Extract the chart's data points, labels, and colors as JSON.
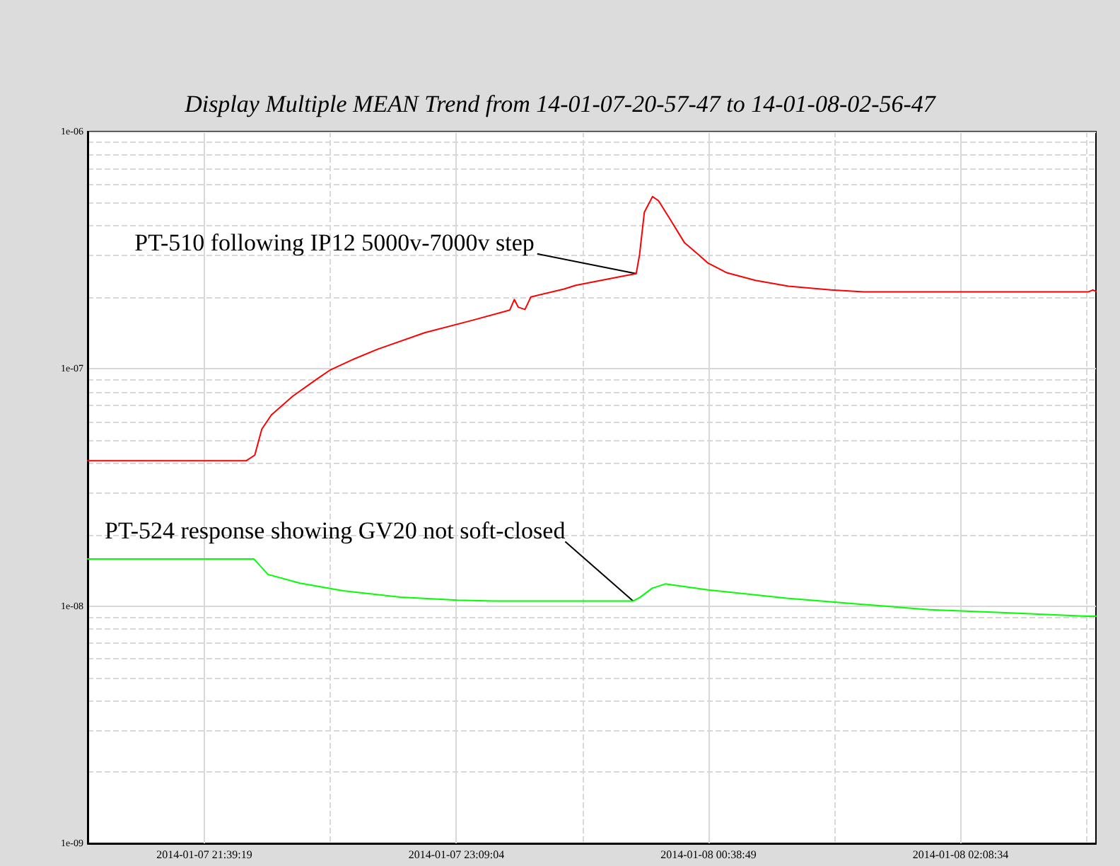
{
  "chart_data": {
    "type": "line",
    "title": "Display Multiple MEAN Trend from 14-01-07-20-57-47 to 14-01-08-02-56-47",
    "log": "y",
    "grid": true,
    "marker": "none",
    "line_style": "solid",
    "xlim": [
      "2014-01-07T20:57:47",
      "2014-01-08T02:56:47"
    ],
    "xticks": [
      {
        "value": "2014-01-07T21:39:19",
        "label": "2014-01-07 21:39:19"
      },
      {
        "value": "2014-01-07T22:24:11",
        "label": null
      },
      {
        "value": "2014-01-07T23:09:04",
        "label": "2014-01-07 23:09:04"
      },
      {
        "value": "2014-01-07T23:53:56",
        "label": null
      },
      {
        "value": "2014-01-08T00:38:49",
        "label": "2014-01-08 00:38:49"
      },
      {
        "value": "2014-01-08T01:23:41",
        "label": null
      },
      {
        "value": "2014-01-08T02:08:34",
        "label": "2014-01-08 02:08:34"
      },
      {
        "value": "2014-01-08T02:53:26",
        "label": null
      }
    ],
    "ylim": [
      1e-09,
      1e-06
    ],
    "yticks": [
      {
        "value": 1e-09,
        "label": "1e-09"
      },
      {
        "value": 2e-09,
        "label": null
      },
      {
        "value": 3e-09,
        "label": null
      },
      {
        "value": 4e-09,
        "label": null
      },
      {
        "value": 5e-09,
        "label": null
      },
      {
        "value": 6e-09,
        "label": null
      },
      {
        "value": 7e-09,
        "label": null
      },
      {
        "value": 8e-09,
        "label": null
      },
      {
        "value": 9e-09,
        "label": null
      },
      {
        "value": 1e-08,
        "label": "1e-08"
      },
      {
        "value": 2e-08,
        "label": null
      },
      {
        "value": 3e-08,
        "label": null
      },
      {
        "value": 4e-08,
        "label": null
      },
      {
        "value": 5e-08,
        "label": null
      },
      {
        "value": 6e-08,
        "label": null
      },
      {
        "value": 7e-08,
        "label": null
      },
      {
        "value": 8e-08,
        "label": null
      },
      {
        "value": 9e-08,
        "label": null
      },
      {
        "value": 1e-07,
        "label": "1e-07"
      },
      {
        "value": 2e-07,
        "label": null
      },
      {
        "value": 3e-07,
        "label": null
      },
      {
        "value": 4e-07,
        "label": null
      },
      {
        "value": 5e-07,
        "label": null
      },
      {
        "value": 6e-07,
        "label": null
      },
      {
        "value": 7e-07,
        "label": null
      },
      {
        "value": 8e-07,
        "label": null
      },
      {
        "value": 9e-07,
        "label": null
      },
      {
        "value": 1e-06,
        "label": "1e-06"
      }
    ],
    "series": [
      {
        "color": "#ff0000",
        "x": [
          "2014-01-07T20:57:47",
          "2014-01-07T21:54:17",
          "2014-01-07T21:57:17",
          "2014-01-07T21:59:47",
          "2014-01-07T22:03:11",
          "2014-01-07T22:10:47",
          "2014-01-07T22:19:05",
          "2014-01-07T22:24:11",
          "2014-01-07T22:32:35",
          "2014-01-07T22:40:59",
          "2014-01-07T22:57:47",
          "2014-01-07T23:14:35",
          "2014-01-07T23:28:05",
          "2014-01-07T23:29:41",
          "2014-01-07T23:31:05",
          "2014-01-07T23:33:29",
          "2014-01-07T23:35:35",
          "2014-01-07T23:47:23",
          "2014-01-07T23:51:35",
          "2014-01-08T00:08:23",
          "2014-01-08T00:13:05",
          "2014-01-08T00:14:17",
          "2014-01-08T00:15:59",
          "2014-01-08T00:18:53",
          "2014-01-08T00:20:59",
          "2014-01-08T00:25:11",
          "2014-01-08T00:30:17",
          "2014-01-08T00:35:17",
          "2014-01-08T00:38:41",
          "2014-01-08T00:45:23",
          "2014-01-08T00:55:29",
          "2014-01-08T01:07:17",
          "2014-01-08T01:22:23",
          "2014-01-08T01:34:05",
          "2014-01-08T02:53:59",
          "2014-01-08T02:55:41",
          "2014-01-08T02:56:47"
        ],
        "values": [
          4.1e-08,
          4.1e-08,
          4.33e-08,
          5.57e-08,
          6.39e-08,
          7.67e-08,
          9e-08,
          9.9e-08,
          1.1e-07,
          1.21e-07,
          1.42e-07,
          1.6e-07,
          1.77e-07,
          1.96e-07,
          1.82e-07,
          1.78e-07,
          2.01e-07,
          2.17e-07,
          2.25e-07,
          2.46e-07,
          2.52e-07,
          3.03e-07,
          4.57e-07,
          5.32e-07,
          5.12e-07,
          4.27e-07,
          3.4e-07,
          3.03e-07,
          2.79e-07,
          2.54e-07,
          2.36e-07,
          2.23e-07,
          2.15e-07,
          2.11e-07,
          2.11e-07,
          2.15e-07,
          2.12e-07
        ]
      },
      {
        "color": "#00ff00",
        "x": [
          "2014-01-07T20:57:47",
          "2014-01-07T21:56:59",
          "2014-01-07T22:01:59",
          "2014-01-07T22:13:23",
          "2014-01-07T22:28:47",
          "2014-01-07T22:49:05",
          "2014-01-07T23:09:29",
          "2014-01-07T23:22:17",
          "2014-01-08T00:11:59",
          "2014-01-08T00:14:29",
          "2014-01-08T00:18:47",
          "2014-01-08T00:23:23",
          "2014-01-08T00:38:41",
          "2014-01-08T01:06:41",
          "2014-01-08T01:32:05",
          "2014-01-08T01:57:35",
          "2014-01-08T02:23:05",
          "2014-01-08T02:53:41",
          "2014-01-08T02:56:47"
        ],
        "values": [
          1.58e-08,
          1.58e-08,
          1.36e-08,
          1.25e-08,
          1.16e-08,
          1.09e-08,
          1.06e-08,
          1.05e-08,
          1.05e-08,
          1.09e-08,
          1.19e-08,
          1.24e-08,
          1.17e-08,
          1.08e-08,
          1.02e-08,
          9.66e-09,
          9.39e-09,
          9.06e-09,
          9.06e-09
        ]
      }
    ],
    "annotations": [
      {
        "text": "PT-510 following IP12 5000v-7000v step",
        "x": "2014-01-08T00:13:05",
        "y": 2.52e-07
      },
      {
        "text": "PT-524 response showing GV20 not soft-closed",
        "x": "2014-01-08T00:11:59",
        "y": 1.05e-08
      }
    ]
  }
}
